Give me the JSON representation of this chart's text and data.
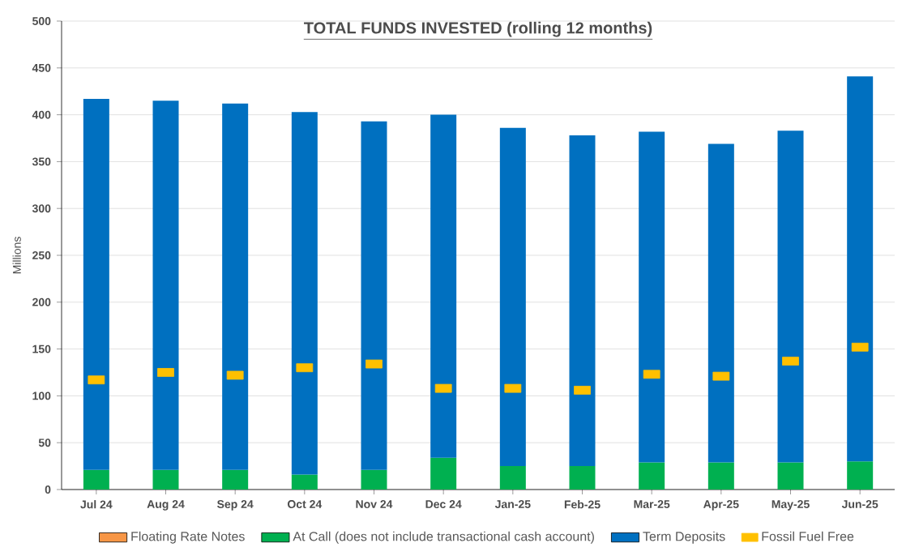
{
  "chart_data": {
    "type": "bar",
    "title": "TOTAL FUNDS INVESTED (rolling 12 months)",
    "ylabel": "Millions",
    "categories": [
      "Jul 24",
      "Aug 24",
      "Sep 24",
      "Oct 24",
      "Nov 24",
      "Dec 24",
      "Jan-25",
      "Feb-25",
      "Mar-25",
      "Apr-25",
      "May-25",
      "Jun-25"
    ],
    "stacked": true,
    "series": [
      {
        "name": "Floating Rate Notes",
        "color": "#f79646",
        "values": [
          0,
          0,
          0,
          0,
          0,
          0,
          0,
          0,
          0,
          0,
          0,
          0
        ]
      },
      {
        "name": "At Call (does not include transactional cash account)",
        "color": "#00b050",
        "values": [
          21,
          21,
          21,
          16,
          21,
          34,
          25,
          25,
          29,
          29,
          29,
          30
        ]
      },
      {
        "name": "Term Deposits",
        "color": "#0070c0",
        "values": [
          396,
          394,
          391,
          387,
          372,
          366,
          361,
          353,
          353,
          340,
          354,
          411
        ]
      },
      {
        "name": "Fossil Fuel Free",
        "type": "scatter",
        "color": "#ffc000",
        "values": [
          117,
          125,
          122,
          130,
          134,
          108,
          108,
          106,
          123,
          121,
          137,
          152
        ]
      }
    ],
    "ylim": [
      0,
      500
    ],
    "yticks": [
      0,
      50,
      100,
      150,
      200,
      250,
      300,
      350,
      400,
      450,
      500
    ],
    "grid": "y",
    "legend": "bottom"
  }
}
